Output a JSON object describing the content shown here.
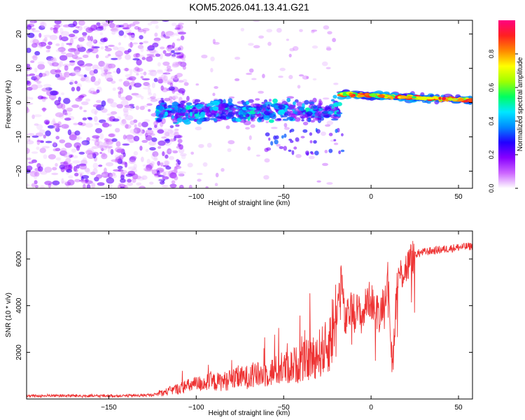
{
  "chart_data": [
    {
      "type": "heatmap",
      "title": "KOM5.2026.041.13.41.G21",
      "xlabel": "Height of straight line (km)",
      "ylabel": "Frequency (Hz)",
      "xlim": [
        -197,
        58
      ],
      "ylim": [
        -25,
        24
      ],
      "xticks": [
        -150,
        -100,
        -50,
        0,
        50
      ],
      "yticks": [
        -20,
        -10,
        0,
        10,
        20
      ],
      "colorbar": {
        "label": "Normalized spectral amplitude",
        "range": [
          0,
          1
        ],
        "ticks": [
          "0.0",
          "0.2",
          "0.4",
          "0.6",
          "0.8"
        ],
        "tick_values": [
          0.0,
          0.2,
          0.4,
          0.6,
          0.8
        ],
        "colors": [
          "#ffffff",
          "#cc66ff",
          "#8800ff",
          "#2200ff",
          "#0088ff",
          "#00e8ff",
          "#00ff60",
          "#a0ff00",
          "#ffff00",
          "#ff8800",
          "#ff2020",
          "#ff0080"
        ]
      },
      "regions": [
        {
          "name": "noise",
          "x_range": [
            -197,
            -122
          ],
          "freq_range": [
            -25,
            24
          ],
          "amplitude": [
            0.03,
            0.25
          ]
        },
        {
          "name": "transition",
          "x_range": [
            -122,
            -18
          ],
          "freq_range": [
            -9,
            4
          ],
          "amplitude": [
            0.15,
            0.5
          ]
        },
        {
          "name": "signal",
          "x_range": [
            -18,
            58
          ],
          "center_freq": [
            2,
            1
          ],
          "amplitude": [
            0.5,
            0.95
          ]
        }
      ]
    },
    {
      "type": "line",
      "xlabel": "Height of straight line (km)",
      "ylabel": "SNR (10 * v/v)",
      "xlim": [
        -197,
        58
      ],
      "ylim": [
        0,
        7200
      ],
      "xticks": [
        -150,
        -100,
        -50,
        0,
        50
      ],
      "yticks": [
        2000,
        4000,
        6000
      ],
      "color": "#ee3333",
      "series": [
        {
          "name": "SNR",
          "x": [
            -197,
            -180,
            -160,
            -140,
            -125,
            -115,
            -105,
            -95,
            -85,
            -75,
            -65,
            -55,
            -45,
            -35,
            -25,
            -20,
            -17,
            -15,
            -12,
            -8,
            -5,
            -2,
            0,
            5,
            10,
            12,
            15,
            20,
            25,
            30,
            40,
            50,
            58
          ],
          "y": [
            100,
            130,
            110,
            120,
            150,
            350,
            550,
            700,
            750,
            900,
            1000,
            1200,
            1400,
            1700,
            2200,
            3500,
            5400,
            3200,
            3800,
            3800,
            3500,
            4300,
            4200,
            3600,
            5300,
            1100,
            5200,
            5600,
            6200,
            6300,
            6400,
            6500,
            6550
          ]
        }
      ]
    }
  ]
}
